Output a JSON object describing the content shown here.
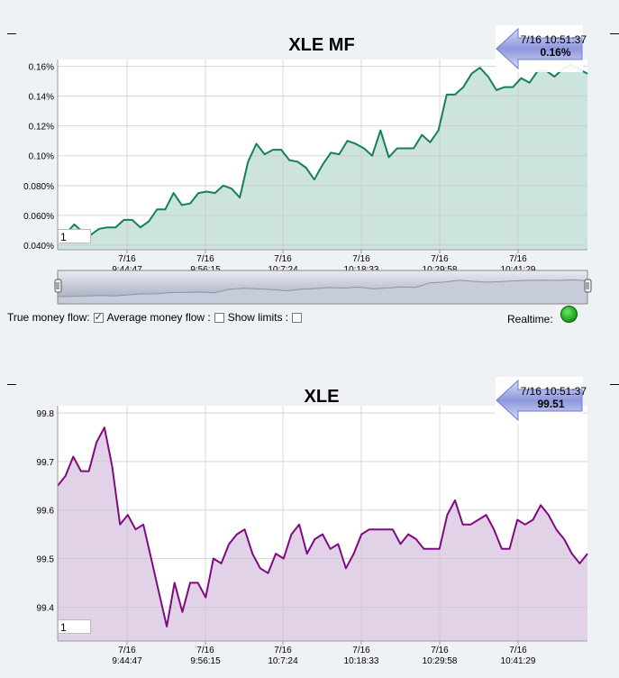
{
  "chart_data": [
    {
      "type": "area",
      "title": "XLE MF",
      "ylim": [
        0.037,
        0.1645
      ],
      "yticks": [
        0.04,
        0.06,
        0.08,
        0.1,
        0.12,
        0.14,
        0.16
      ],
      "ytick_labels": [
        "0.040%",
        "0.060%",
        "0.080%",
        "0.10%",
        "0.12%",
        "0.14%",
        "0.16%"
      ],
      "xticks": [
        {
          "date": "7/16",
          "time": "9:44:47"
        },
        {
          "date": "7/16",
          "time": "9:56:15"
        },
        {
          "date": "7/16",
          "time": "10:7:24"
        },
        {
          "date": "7/16",
          "time": "10:18:33"
        },
        {
          "date": "7/16",
          "time": "10:29:58"
        },
        {
          "date": "7/16",
          "time": "10:41:29"
        }
      ],
      "values": [
        0.048,
        0.048,
        0.054,
        0.049,
        0.047,
        0.051,
        0.052,
        0.052,
        0.057,
        0.057,
        0.052,
        0.056,
        0.064,
        0.064,
        0.075,
        0.067,
        0.068,
        0.075,
        0.076,
        0.075,
        0.08,
        0.078,
        0.072,
        0.096,
        0.108,
        0.101,
        0.104,
        0.104,
        0.097,
        0.096,
        0.092,
        0.084,
        0.094,
        0.102,
        0.101,
        0.11,
        0.108,
        0.105,
        0.1,
        0.117,
        0.099,
        0.105,
        0.105,
        0.105,
        0.114,
        0.109,
        0.117,
        0.141,
        0.141,
        0.146,
        0.155,
        0.159,
        0.153,
        0.144,
        0.146,
        0.146,
        0.152,
        0.149,
        0.157,
        0.157,
        0.153,
        0.158,
        0.161,
        0.158,
        0.155
      ],
      "grid": true,
      "line_color": "#14805a",
      "fill_color": "#cde3de",
      "tooltip": {
        "time": "7/16 10:51:37",
        "value": "0.16%"
      },
      "input_value": "1"
    },
    {
      "type": "area",
      "title": "XLE",
      "ylim": [
        99.33,
        99.815
      ],
      "yticks": [
        99.4,
        99.5,
        99.6,
        99.7,
        99.8
      ],
      "ytick_labels": [
        "99.4",
        "99.5",
        "99.6",
        "99.7",
        "99.8"
      ],
      "xticks": [
        {
          "date": "7/16",
          "time": "9:44:47"
        },
        {
          "date": "7/16",
          "time": "9:56:15"
        },
        {
          "date": "7/16",
          "time": "10:7:24"
        },
        {
          "date": "7/16",
          "time": "10:18:33"
        },
        {
          "date": "7/16",
          "time": "10:29:58"
        },
        {
          "date": "7/16",
          "time": "10:41:29"
        }
      ],
      "values": [
        99.65,
        99.67,
        99.71,
        99.68,
        99.68,
        99.74,
        99.77,
        99.69,
        99.57,
        99.59,
        99.56,
        99.57,
        99.5,
        99.43,
        99.36,
        99.45,
        99.39,
        99.45,
        99.45,
        99.42,
        99.5,
        99.49,
        99.53,
        99.55,
        99.56,
        99.51,
        99.48,
        99.47,
        99.51,
        99.5,
        99.55,
        99.57,
        99.51,
        99.54,
        99.55,
        99.52,
        99.53,
        99.48,
        99.51,
        99.55,
        99.56,
        99.56,
        99.56,
        99.56,
        99.53,
        99.55,
        99.54,
        99.52,
        99.52,
        99.52,
        99.59,
        99.62,
        99.57,
        99.57,
        99.58,
        99.59,
        99.56,
        99.52,
        99.52,
        99.58,
        99.57,
        99.58,
        99.61,
        99.59,
        99.56,
        99.54,
        99.51,
        99.49,
        99.51
      ],
      "grid": true,
      "line_color": "#800a80",
      "fill_color": "#e2d2e8",
      "tooltip": {
        "time": "7/16 10:51:37",
        "value": "99.51"
      },
      "input_value": "1"
    }
  ],
  "navigator": {
    "values": [
      0.048,
      0.05,
      0.052,
      0.055,
      0.052,
      0.06,
      0.066,
      0.068,
      0.075,
      0.076,
      0.078,
      0.074,
      0.098,
      0.104,
      0.1,
      0.095,
      0.087,
      0.098,
      0.102,
      0.109,
      0.105,
      0.112,
      0.101,
      0.105,
      0.113,
      0.11,
      0.14,
      0.145,
      0.157,
      0.15,
      0.144,
      0.149,
      0.153,
      0.157,
      0.158,
      0.156,
      0.16,
      0.155
    ]
  },
  "controls": {
    "true_money_flow_label": "True money flow:",
    "true_money_flow_checked": true,
    "average_money_flow_label": "Average money flow :",
    "average_money_flow_checked": false,
    "show_limits_label": "Show limits :",
    "show_limits_checked": false,
    "realtime_label": "Realtime:"
  }
}
